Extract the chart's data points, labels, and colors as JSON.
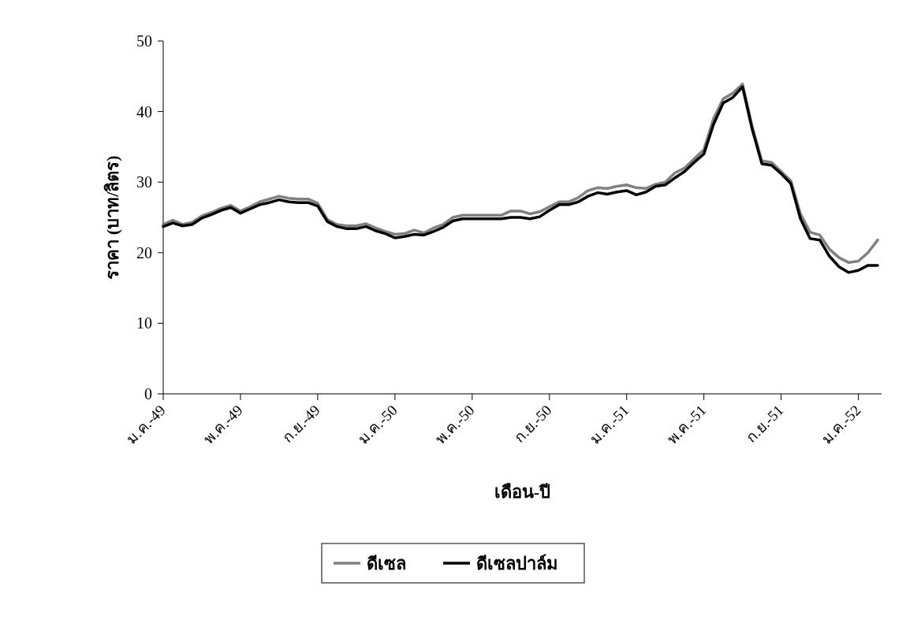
{
  "chart_data": {
    "type": "line",
    "xlabel": "เดือน-ปี",
    "ylabel": "ราคา (บาท/ลิตร)",
    "categories": [
      "ม.ค.-49",
      null,
      null,
      null,
      null,
      null,
      null,
      null,
      "พ.ค.-49",
      null,
      null,
      null,
      null,
      null,
      null,
      null,
      "ก.ย.-49",
      null,
      null,
      null,
      null,
      null,
      null,
      null,
      "ม.ค.-50",
      null,
      null,
      null,
      null,
      null,
      null,
      null,
      "พ.ค.-50",
      null,
      null,
      null,
      null,
      null,
      null,
      null,
      "ก.ย.-50",
      null,
      null,
      null,
      null,
      null,
      null,
      null,
      "ม.ค.-51",
      null,
      null,
      null,
      null,
      null,
      null,
      null,
      "พ.ค.-51",
      null,
      null,
      null,
      null,
      null,
      null,
      null,
      "ก.ย.-51",
      null,
      null,
      null,
      null,
      null,
      null,
      null,
      "ม.ค.-52",
      null,
      null
    ],
    "series": [
      {
        "name": "ดีเซล",
        "color": "#808080",
        "values": [
          24.0,
          24.6,
          24.0,
          24.3,
          25.2,
          25.7,
          26.3,
          26.7,
          25.9,
          26.5,
          27.2,
          27.6,
          28.0,
          27.7,
          27.6,
          27.6,
          27.0,
          24.7,
          24.0,
          23.8,
          23.8,
          24.1,
          23.5,
          23.0,
          22.6,
          22.7,
          23.2,
          22.8,
          23.5,
          24.0,
          25.0,
          25.3,
          25.3,
          25.3,
          25.3,
          25.3,
          25.9,
          25.9,
          25.5,
          25.8,
          26.5,
          27.2,
          27.2,
          27.8,
          28.8,
          29.2,
          29.1,
          29.4,
          29.6,
          29.2,
          29.1,
          29.7,
          30.0,
          31.3,
          32.0,
          33.3,
          34.6,
          39.0,
          41.8,
          42.6,
          43.9,
          37.9,
          33.0,
          32.8,
          31.5,
          30.2,
          25.5,
          22.9,
          22.5,
          20.5,
          19.3,
          18.6,
          18.8,
          20.0,
          21.8
        ]
      },
      {
        "name": "ดีเซลปาล์ม",
        "color": "#000000",
        "values": [
          23.7,
          24.2,
          23.8,
          24.0,
          24.9,
          25.4,
          26.0,
          26.4,
          25.6,
          26.2,
          26.8,
          27.1,
          27.5,
          27.2,
          27.1,
          27.1,
          26.6,
          24.4,
          23.7,
          23.4,
          23.4,
          23.7,
          23.1,
          22.7,
          22.1,
          22.3,
          22.6,
          22.5,
          23.0,
          23.6,
          24.5,
          24.8,
          24.8,
          24.8,
          24.8,
          24.8,
          25.0,
          25.0,
          24.8,
          25.1,
          26.0,
          26.8,
          26.8,
          27.2,
          28.0,
          28.5,
          28.3,
          28.6,
          28.8,
          28.2,
          28.6,
          29.4,
          29.6,
          30.6,
          31.5,
          32.8,
          34.0,
          38.2,
          41.2,
          42.0,
          43.5,
          37.5,
          32.6,
          32.4,
          31.2,
          29.8,
          24.8,
          22.0,
          21.8,
          19.5,
          18.0,
          17.2,
          17.5,
          18.2,
          18.2
        ]
      }
    ],
    "ylim": [
      0,
      50
    ],
    "yticks": [
      0,
      10,
      20,
      30,
      40,
      50
    ],
    "legend": "bottom"
  }
}
